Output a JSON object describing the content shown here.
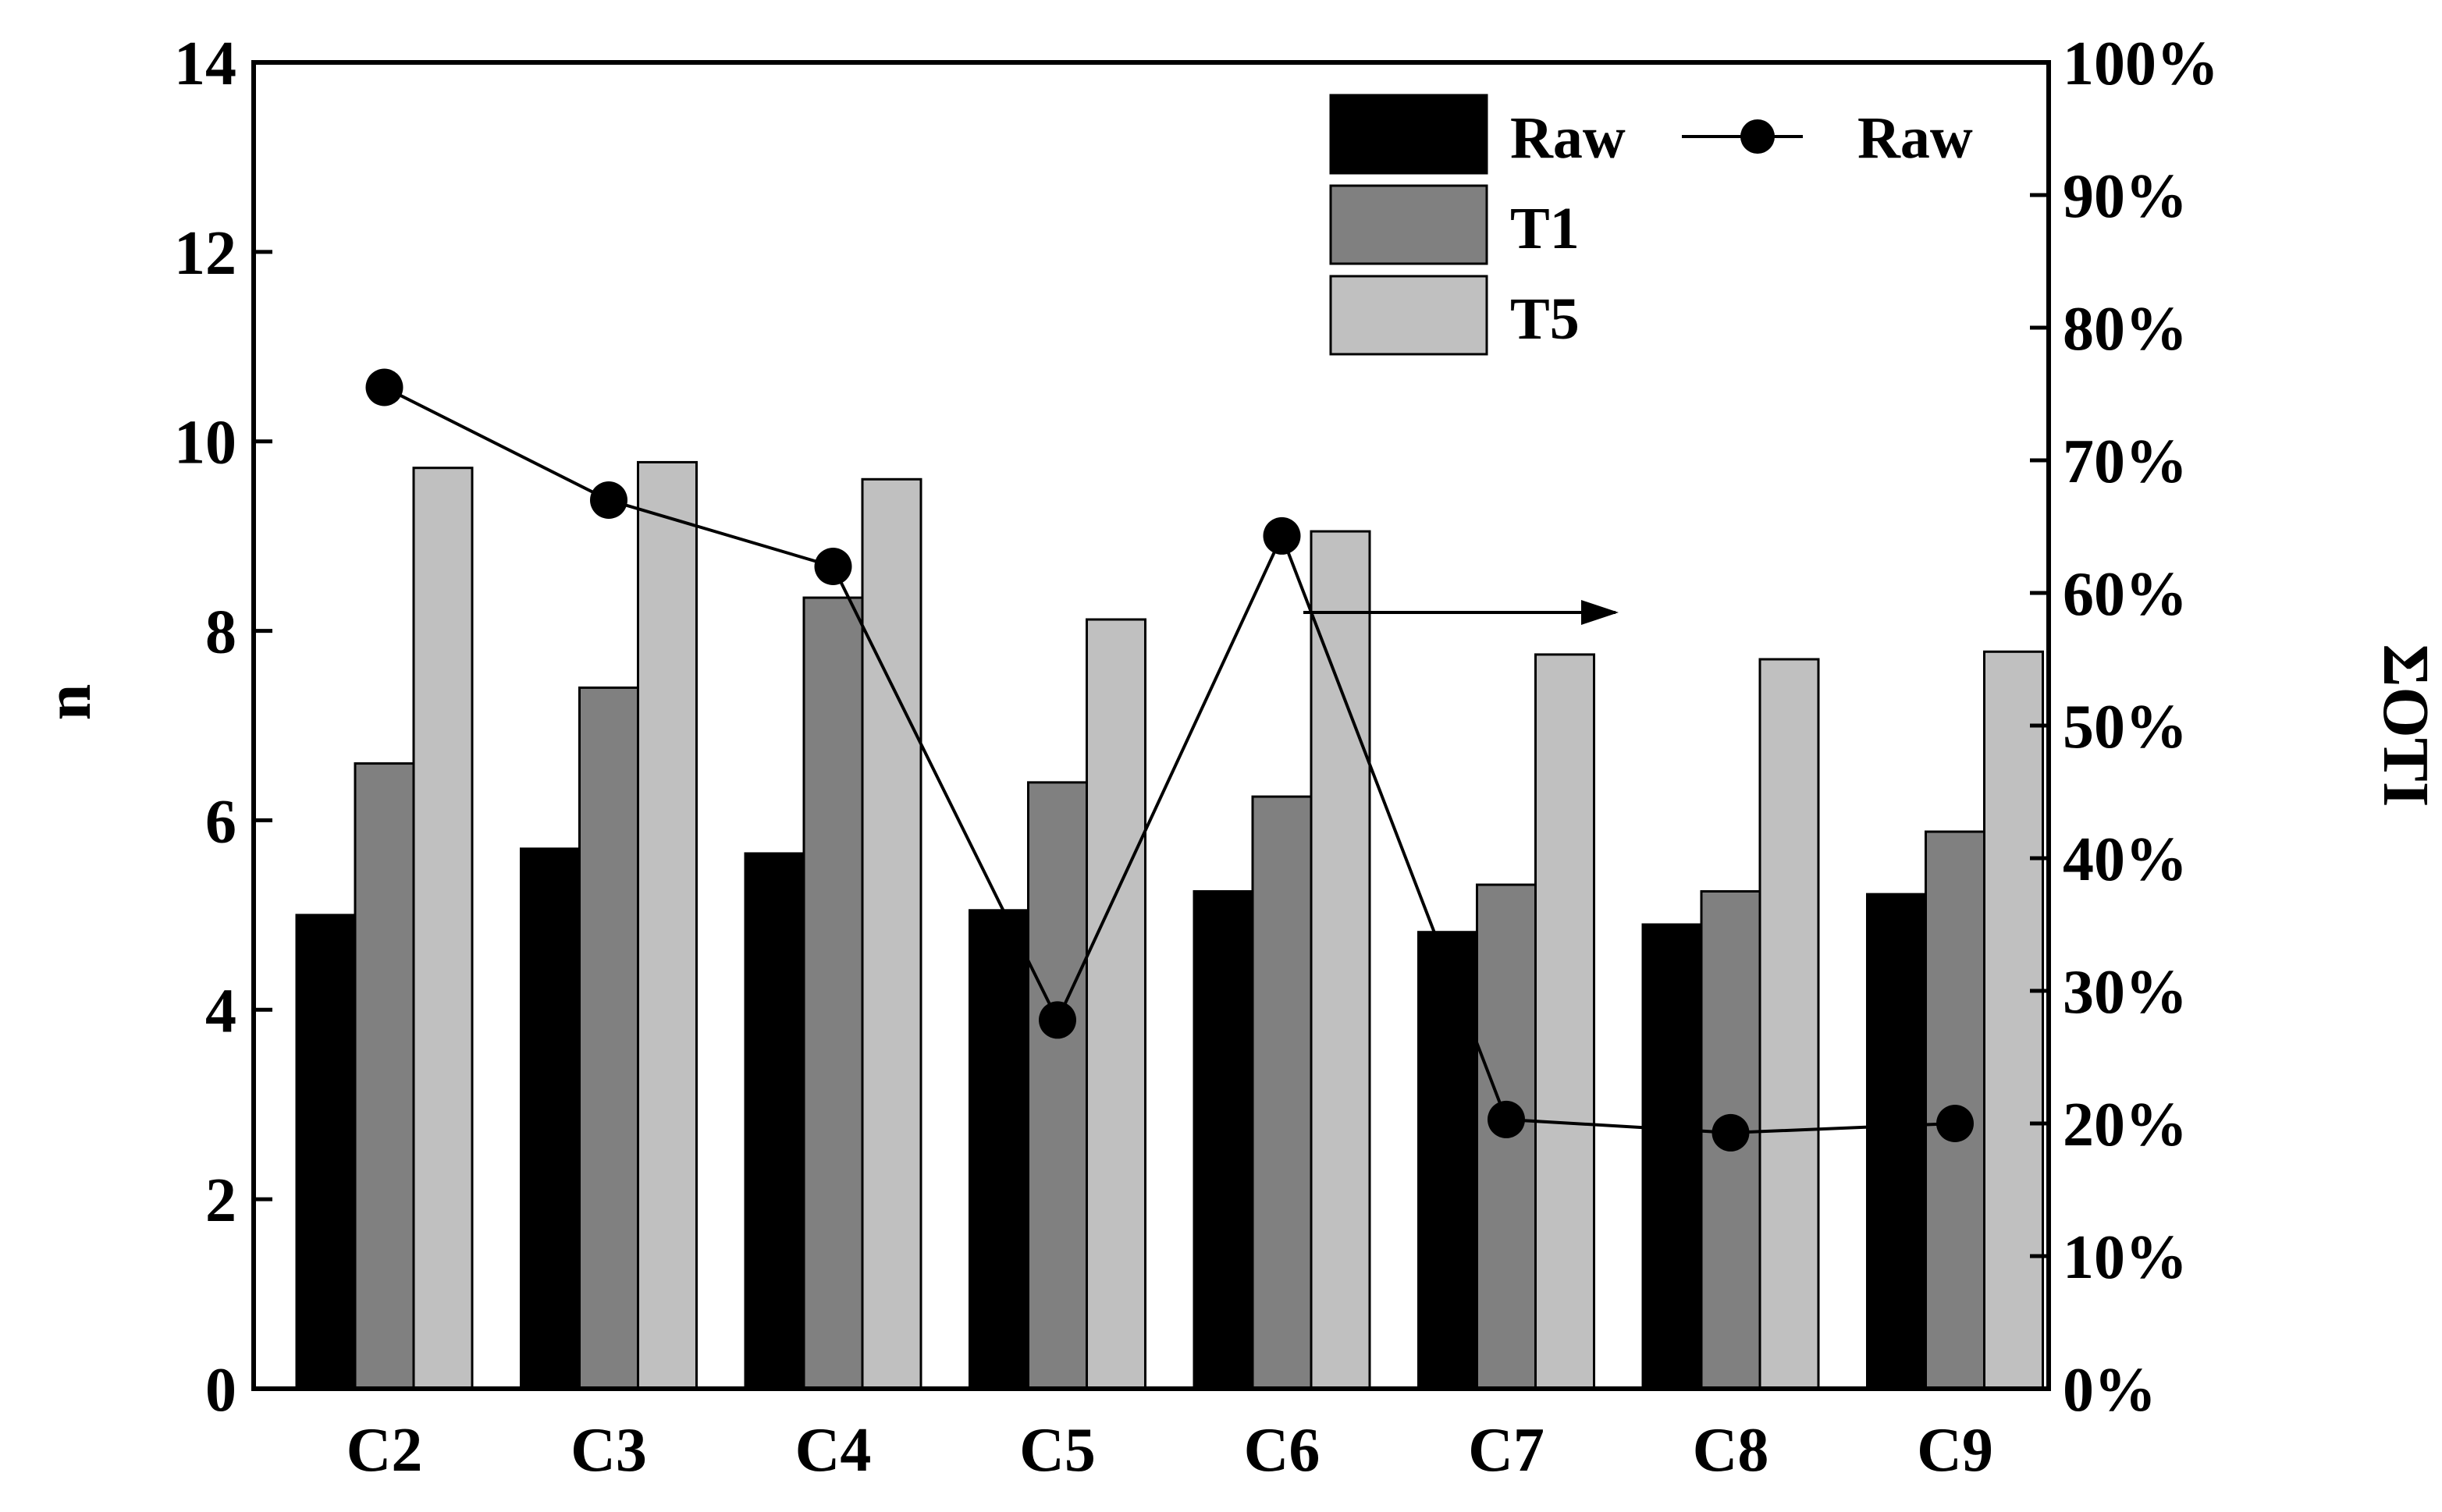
{
  "chart_data": {
    "type": "bar",
    "categories": [
      "C2",
      "C3",
      "C4",
      "C5",
      "C6",
      "C7",
      "C8",
      "C9"
    ],
    "series": [
      {
        "name": "Raw",
        "axis": "left",
        "kind": "bar",
        "color": "#000000",
        "values": [
          5.0,
          5.7,
          5.65,
          5.05,
          5.25,
          4.82,
          4.9,
          5.22
        ]
      },
      {
        "name": "T1",
        "axis": "left",
        "kind": "bar",
        "color": "#808080",
        "values": [
          6.6,
          7.4,
          8.35,
          6.4,
          6.25,
          5.32,
          5.25,
          5.88
        ]
      },
      {
        "name": "T5",
        "axis": "left",
        "kind": "bar",
        "color": "#c0c0c0",
        "values": [
          9.72,
          9.78,
          9.6,
          8.12,
          9.05,
          7.75,
          7.7,
          7.78
        ]
      },
      {
        "name": "Raw",
        "axis": "right",
        "kind": "line",
        "color": "#000000",
        "values": [
          75.5,
          67.0,
          62.0,
          27.8,
          64.3,
          20.3,
          19.3,
          20.0
        ]
      }
    ],
    "ylabel": "n",
    "ylim": [
      0,
      14
    ],
    "yticks": [
      "0",
      "2",
      "4",
      "6",
      "8",
      "10",
      "12",
      "14"
    ],
    "y2label": "ΣOTI",
    "y2lim": [
      0,
      100
    ],
    "y2ticks": [
      "0%",
      "10%",
      "20%",
      "30%",
      "40%",
      "50%",
      "60%",
      "70%",
      "80%",
      "90%",
      "100%"
    ],
    "legend_position": "top-right",
    "annotation": "arrow pointing right toward the ΣOTI axis"
  }
}
